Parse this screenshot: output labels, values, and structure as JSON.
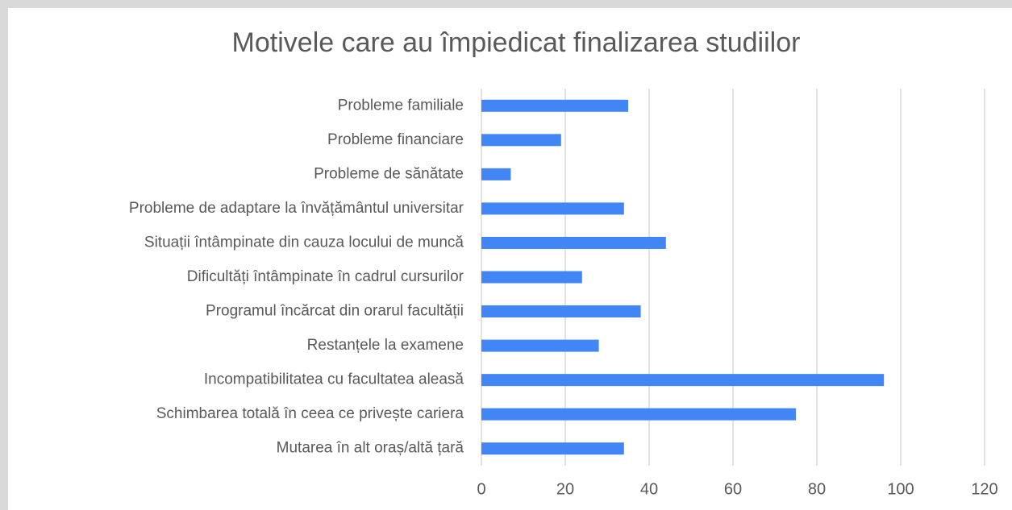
{
  "chart_data": {
    "type": "bar",
    "orientation": "horizontal",
    "title": "Motivele care au împiedicat finalizarea studiilor",
    "categories": [
      "Probleme familiale",
      "Probleme financiare",
      "Probleme de sănătate",
      "Probleme de adaptare la învățământul universitar",
      "Situații întâmpinate din cauza locului de muncă",
      "Dificultăți întâmpinate în cadrul cursurilor",
      "Programul încărcat din orarul facultății",
      "Restanțele la examene",
      "Incompatibilitatea cu facultatea aleasă",
      "Schimbarea totală în ceea ce privește cariera",
      "Mutarea în alt oraș/altă țară"
    ],
    "values": [
      35,
      19,
      7,
      34,
      44,
      24,
      38,
      28,
      96,
      75,
      34
    ],
    "color": "#4285f4",
    "xlim": [
      0,
      120
    ],
    "xticks": [
      0,
      20,
      40,
      60,
      80,
      100,
      120
    ],
    "grid": true
  }
}
